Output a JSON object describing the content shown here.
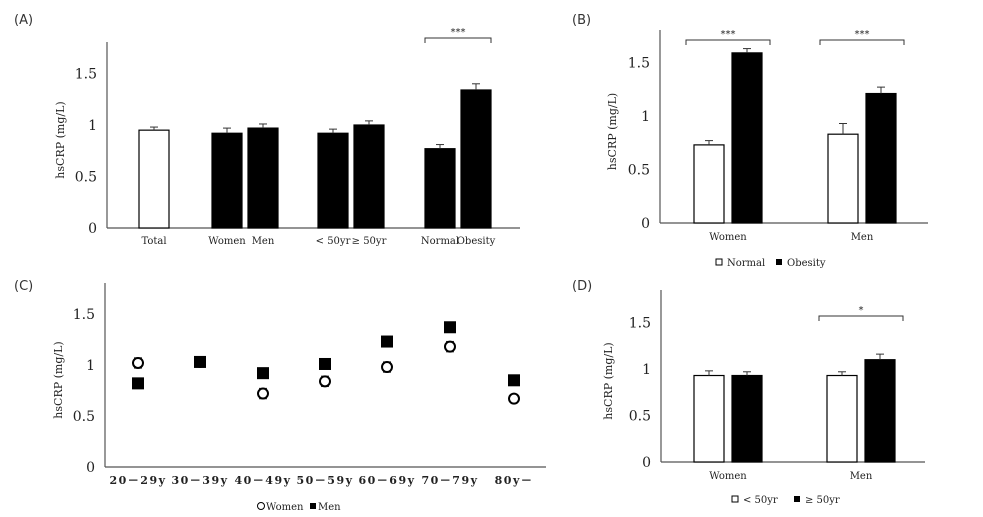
{
  "chart_data": [
    {
      "id": "A",
      "panel_label": "(A)",
      "type": "bar",
      "ylabel": "hsCRP (mg/L)",
      "ylim": [
        0,
        1.8
      ],
      "yticks": [
        "0",
        "0.5",
        "1",
        "1.5"
      ],
      "ytick_values": [
        0,
        0.5,
        1,
        1.5
      ],
      "groups": [
        {
          "label": "Total",
          "bars": [
            {
              "name": "Total",
              "value": 0.95,
              "err": 0.03,
              "fill": "#ffffff"
            }
          ]
        },
        {
          "label": "Women   Men",
          "bars": [
            {
              "name": "Women",
              "value": 0.92,
              "err": 0.05,
              "fill": "#000000"
            },
            {
              "name": "Men",
              "value": 0.97,
              "err": 0.04,
              "fill": "#000000"
            }
          ]
        },
        {
          "label": "< 50yr  ≥ 50yr",
          "bars": [
            {
              "name": "< 50yr",
              "value": 0.92,
              "err": 0.04,
              "fill": "#000000"
            },
            {
              "name": "≥ 50yr",
              "value": 1.0,
              "err": 0.04,
              "fill": "#000000"
            }
          ]
        },
        {
          "label": "Normal  Obesity",
          "bars": [
            {
              "name": "Normal",
              "value": 0.77,
              "err": 0.04,
              "fill": "#000000"
            },
            {
              "name": "Obesity",
              "value": 1.34,
              "err": 0.06,
              "fill": "#000000"
            }
          ]
        }
      ],
      "significance": [
        {
          "group": 3,
          "label": "***"
        }
      ]
    },
    {
      "id": "B",
      "panel_label": "(B)",
      "type": "bar",
      "ylabel": "hsCRP (mg/L)",
      "ylim": [
        0,
        1.8
      ],
      "yticks": [
        "0",
        "0.5",
        "1",
        "1.5"
      ],
      "ytick_values": [
        0,
        0.5,
        1,
        1.5
      ],
      "categories": [
        "Women",
        "Men"
      ],
      "series": [
        {
          "name": "Normal",
          "fill": "#ffffff",
          "values": [
            0.73,
            0.83
          ],
          "err": [
            0.04,
            0.1
          ]
        },
        {
          "name": "Obesity",
          "fill": "#000000",
          "values": [
            1.59,
            1.21
          ],
          "err": [
            0.04,
            0.06
          ]
        }
      ],
      "significance": [
        {
          "group": 0,
          "label": "***"
        },
        {
          "group": 1,
          "label": "***"
        }
      ],
      "legend": [
        {
          "label": "Normal",
          "marker": "open-square"
        },
        {
          "label": "Obesity",
          "marker": "filled-square"
        }
      ],
      "legend_position": "bottom"
    },
    {
      "id": "C",
      "panel_label": "(C)",
      "type": "scatter",
      "ylabel": "hsCRP (mg/L)",
      "ylim": [
        0,
        1.8
      ],
      "yticks": [
        "0",
        "0.5",
        "1",
        "1.5"
      ],
      "ytick_values": [
        0,
        0.5,
        1,
        1.5
      ],
      "categories": [
        "20－29y",
        "30－39y",
        "40－49y",
        "50－59y",
        "60－69y",
        "70－79y",
        "80y－"
      ],
      "series": [
        {
          "name": "Women",
          "marker": "open-circle",
          "values": [
            1.02,
            1.03,
            0.72,
            0.84,
            0.98,
            1.18,
            0.67
          ],
          "err": [
            0.05,
            0.05,
            0.05,
            0.05,
            0.05,
            0.05,
            0.04
          ]
        },
        {
          "name": "Men",
          "marker": "filled-square",
          "values": [
            0.82,
            1.03,
            0.92,
            1.01,
            1.23,
            1.37,
            0.85
          ],
          "err": [
            0.05,
            0.04,
            0.05,
            0.05,
            0.05,
            0.05,
            0.05
          ]
        }
      ],
      "legend": [
        {
          "label": "Women",
          "marker": "open-circle"
        },
        {
          "label": "Men",
          "marker": "filled-square"
        }
      ],
      "legend_position": "bottom"
    },
    {
      "id": "D",
      "panel_label": "(D)",
      "type": "bar",
      "ylabel": "hsCRP (mg/L)",
      "ylim": [
        0,
        1.8
      ],
      "yticks": [
        "0",
        "0.5",
        "1",
        "1.5"
      ],
      "ytick_values": [
        0,
        0.5,
        1,
        1.5
      ],
      "categories": [
        "Women",
        "Men"
      ],
      "series": [
        {
          "name": "< 50yr",
          "fill": "#ffffff",
          "values": [
            0.93,
            0.93
          ],
          "err": [
            0.05,
            0.04
          ]
        },
        {
          "name": "≥ 50yr",
          "fill": "#000000",
          "values": [
            0.93,
            1.1
          ],
          "err": [
            0.04,
            0.06
          ]
        }
      ],
      "significance": [
        {
          "group": 1,
          "label": "*"
        }
      ],
      "legend": [
        {
          "label": "< 50yr",
          "marker": "open-square"
        },
        {
          "label": "≥ 50yr",
          "marker": "filled-square"
        }
      ],
      "legend_position": "bottom"
    }
  ]
}
